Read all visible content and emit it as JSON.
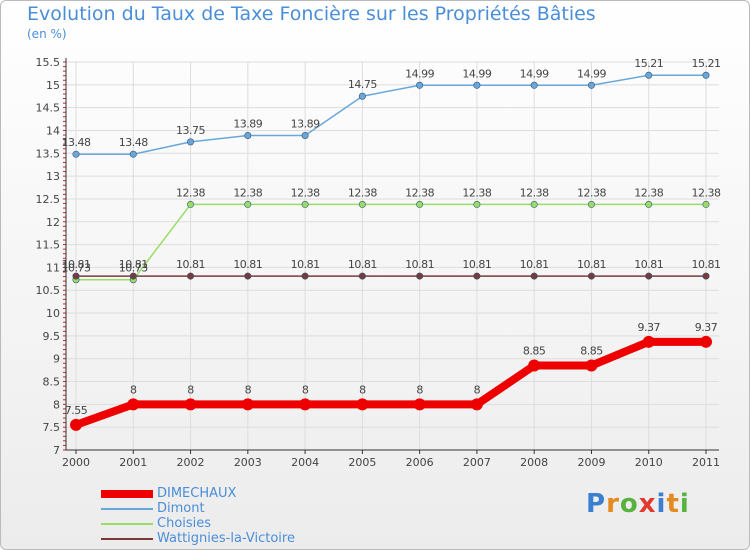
{
  "header": {
    "title": "Evolution du Taux de Taxe Foncière sur les Propriétés Bâties",
    "subtitle": "(en %)"
  },
  "logo": {
    "letters": [
      "P",
      "r",
      "o",
      "x",
      "i",
      "t",
      "i"
    ],
    "colors": [
      "#3b7fd0",
      "#e58a1f",
      "#57b33e",
      "#e03b2f",
      "#3b7fd0",
      "#e58a1f",
      "#57b33e"
    ]
  },
  "colors": {
    "axis": "#333333",
    "grid": "#dddddd",
    "text": "#444444",
    "accent": "#4a8ed8"
  },
  "chart_data": {
    "type": "line",
    "title": "Evolution du Taux de Taxe Foncière sur les Propriétés Bâties",
    "subtitle": "(en %)",
    "xlabel": "",
    "ylabel": "",
    "x": [
      "2000",
      "2001",
      "2002",
      "2003",
      "2004",
      "2005",
      "2006",
      "2007",
      "2008",
      "2009",
      "2010",
      "2011"
    ],
    "ylim": [
      7,
      15.5
    ],
    "yticks": [
      "7",
      "7.5",
      "8",
      "8.5",
      "9",
      "9.5",
      "10",
      "10.5",
      "11",
      "11.5",
      "12",
      "12.5",
      "13",
      "13.5",
      "14",
      "14.5",
      "15",
      "15.5"
    ],
    "grid": true,
    "legend_position": "bottom-left",
    "series": [
      {
        "name": "DIMECHAUX",
        "color": "#ee0000",
        "values": [
          7.55,
          8,
          8,
          8,
          8,
          8,
          8,
          8,
          8.85,
          8.85,
          9.37,
          9.37
        ],
        "labels": [
          "7.55",
          "8",
          "8",
          "8",
          "8",
          "8",
          "8",
          "8",
          "8.85",
          "8.85",
          "9.37",
          "9.37"
        ]
      },
      {
        "name": "Dimont",
        "color": "#6aa7d8",
        "values": [
          13.48,
          13.48,
          13.75,
          13.89,
          13.89,
          14.75,
          14.99,
          14.99,
          14.99,
          14.99,
          15.21,
          15.21
        ],
        "labels": [
          "13.48",
          "13.48",
          "13.75",
          "13.89",
          "13.89",
          "14.75",
          "14.99",
          "14.99",
          "14.99",
          "14.99",
          "15.21",
          "15.21"
        ]
      },
      {
        "name": "Choisies",
        "color": "#99dd66",
        "values": [
          10.73,
          10.73,
          12.38,
          12.38,
          12.38,
          12.38,
          12.38,
          12.38,
          12.38,
          12.38,
          12.38,
          12.38
        ],
        "labels": [
          "10.73",
          "10.73",
          "12.38",
          "12.38",
          "12.38",
          "12.38",
          "12.38",
          "12.38",
          "12.38",
          "12.38",
          "12.38",
          "12.38"
        ]
      },
      {
        "name": "Wattignies-la-Victoire",
        "color": "#7a3a3a",
        "values": [
          10.81,
          10.81,
          10.81,
          10.81,
          10.81,
          10.81,
          10.81,
          10.81,
          10.81,
          10.81,
          10.81,
          10.81
        ],
        "labels": [
          "10.81",
          "10.81",
          "10.81",
          "10.81",
          "10.81",
          "10.81",
          "10.81",
          "10.81",
          "10.81",
          "10.81",
          "10.81",
          "10.81"
        ]
      }
    ]
  }
}
